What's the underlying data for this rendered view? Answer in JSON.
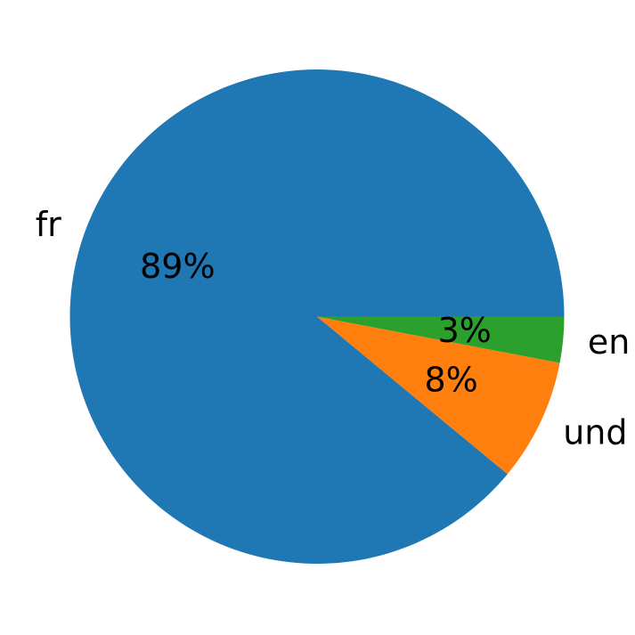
{
  "figure": {
    "background": "#ffffff",
    "title": ""
  },
  "chart_data": {
    "type": "pie",
    "categories": [
      "fr",
      "und",
      "en"
    ],
    "values": [
      89,
      8,
      3
    ],
    "pct_labels": [
      "89%",
      "8%",
      "3%"
    ],
    "colors": [
      "#1f77b4",
      "#ff7f0e",
      "#2ca02c"
    ],
    "start_angle": 0,
    "counterclock": true,
    "label_distance": 1.1,
    "pct_distance": 0.6,
    "text_color": "#000000",
    "legend": "none",
    "grid": "off"
  }
}
